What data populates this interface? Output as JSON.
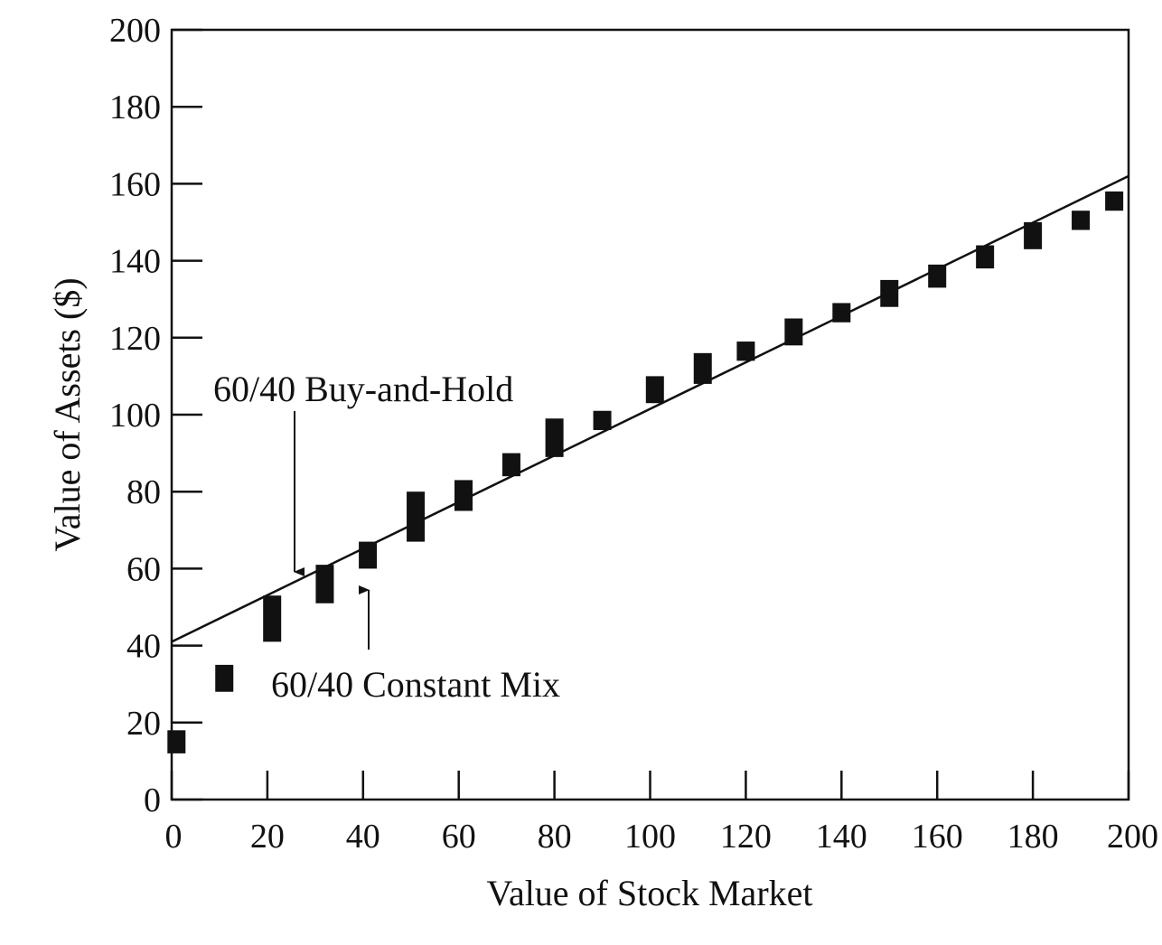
{
  "chart_data": {
    "type": "scatter",
    "title": "",
    "xlabel": "Value of Stock Market",
    "ylabel": "Value of Assets ($)",
    "xlim": [
      0,
      200
    ],
    "ylim": [
      0,
      200
    ],
    "x_ticks": [
      0,
      20,
      40,
      60,
      80,
      100,
      120,
      140,
      160,
      180,
      200
    ],
    "y_ticks": [
      0,
      20,
      40,
      60,
      80,
      100,
      120,
      140,
      160,
      180,
      200
    ],
    "grid": false,
    "series": [
      {
        "name": "60/40 Buy-and-Hold",
        "kind": "line",
        "points": [
          [
            0,
            41
          ],
          [
            200,
            162
          ]
        ]
      },
      {
        "name": "60/40 Constant Mix",
        "kind": "range-markers",
        "points": [
          {
            "x": 1,
            "low": 12,
            "high": 18
          },
          {
            "x": 11,
            "low": 28,
            "high": 35
          },
          {
            "x": 21,
            "low": 41,
            "high": 53
          },
          {
            "x": 32,
            "low": 51,
            "high": 61
          },
          {
            "x": 41,
            "low": 60,
            "high": 67
          },
          {
            "x": 51,
            "low": 67,
            "high": 80
          },
          {
            "x": 61,
            "low": 75,
            "high": 83
          },
          {
            "x": 71,
            "low": 84,
            "high": 90
          },
          {
            "x": 80,
            "low": 89,
            "high": 99
          },
          {
            "x": 90,
            "low": 96,
            "high": 101
          },
          {
            "x": 101,
            "low": 103,
            "high": 110
          },
          {
            "x": 111,
            "low": 108,
            "high": 116
          },
          {
            "x": 120,
            "low": 114,
            "high": 119
          },
          {
            "x": 130,
            "low": 118,
            "high": 125
          },
          {
            "x": 140,
            "low": 124,
            "high": 129
          },
          {
            "x": 150,
            "low": 128,
            "high": 135
          },
          {
            "x": 160,
            "low": 133,
            "high": 139
          },
          {
            "x": 170,
            "low": 138,
            "high": 144
          },
          {
            "x": 180,
            "low": 143,
            "high": 150
          },
          {
            "x": 190,
            "low": 148,
            "high": 153
          },
          {
            "x": 197,
            "low": 153,
            "high": 158
          }
        ]
      }
    ],
    "annotations": [
      {
        "text": "60/40 Buy-and-Hold",
        "points_to": "60/40 Buy-and-Hold"
      },
      {
        "text": "60/40 Constant Mix",
        "points_to": "60/40 Constant Mix"
      }
    ],
    "colors": {
      "ink": "#111111",
      "background": "#ffffff"
    }
  }
}
